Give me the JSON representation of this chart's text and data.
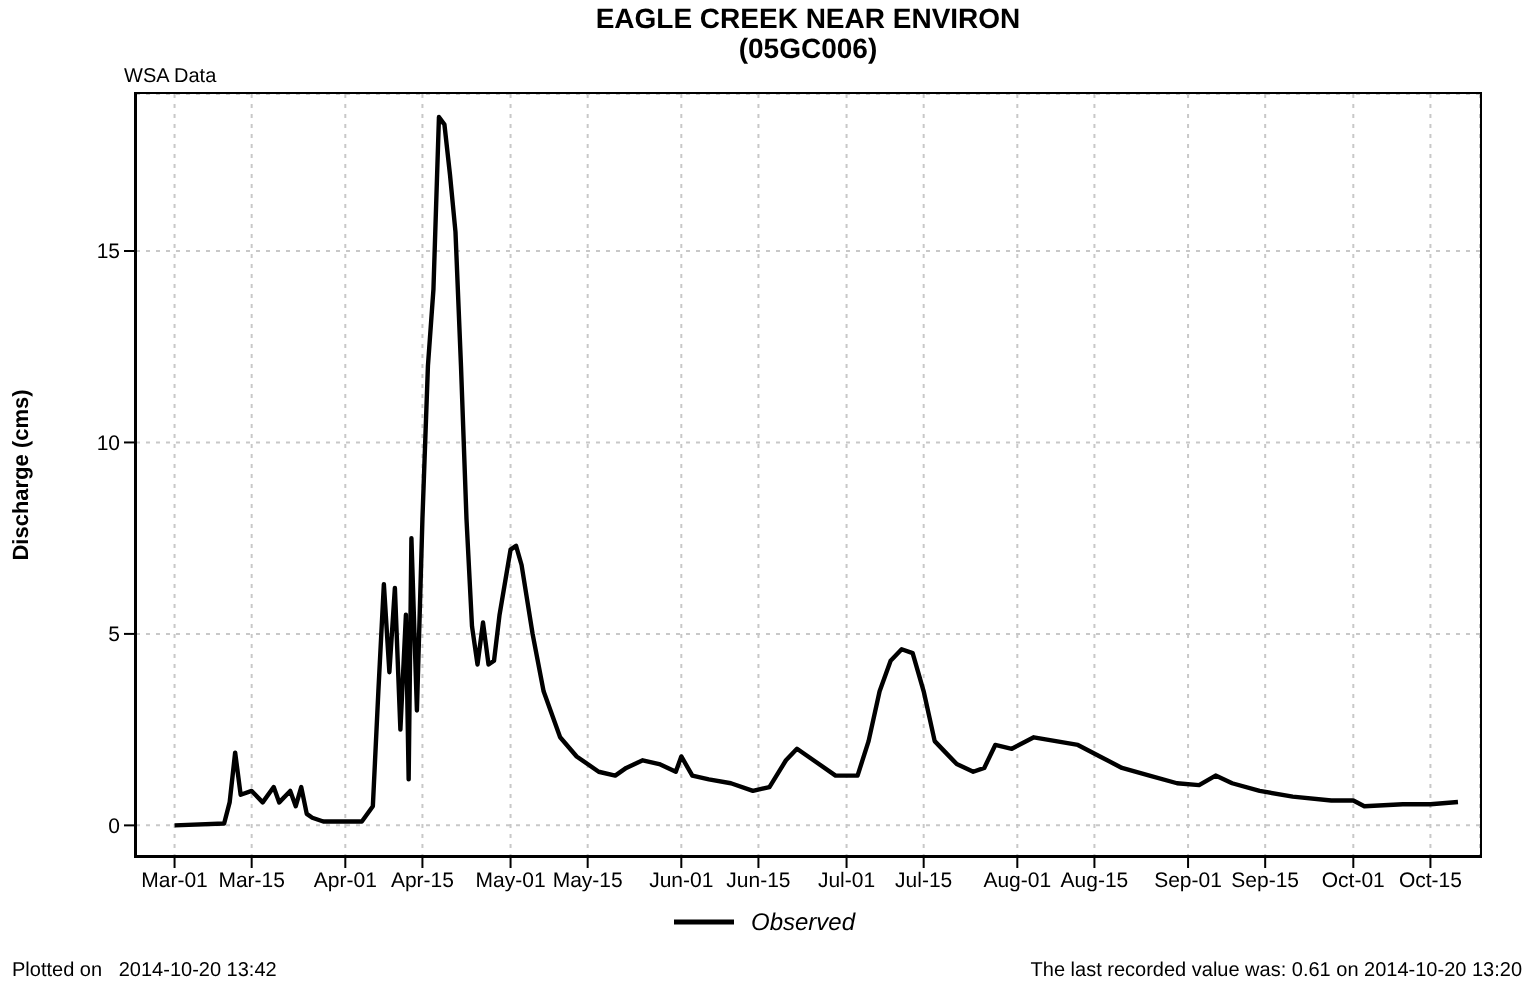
{
  "chart_data": {
    "type": "line",
    "title": "EAGLE CREEK NEAR ENVIRON",
    "subtitle": "(05GC006)",
    "ylabel": "Discharge (cms)",
    "annotations": [
      "WSA Data",
      "Plotted on   2014-10-20 13:42",
      "The last recorded value was: 0.61 on 2014-10-20 13:20"
    ],
    "xlim": [
      "2014-02-22",
      "2014-10-24"
    ],
    "xticks": [
      {
        "value": "2014-03-01",
        "label": "Mar-01"
      },
      {
        "value": "2014-03-15",
        "label": "Mar-15"
      },
      {
        "value": "2014-04-01",
        "label": "Apr-01"
      },
      {
        "value": "2014-04-15",
        "label": "Apr-15"
      },
      {
        "value": "2014-05-01",
        "label": "May-01"
      },
      {
        "value": "2014-05-15",
        "label": "May-15"
      },
      {
        "value": "2014-06-01",
        "label": "Jun-01"
      },
      {
        "value": "2014-06-15",
        "label": "Jun-15"
      },
      {
        "value": "2014-07-01",
        "label": "Jul-01"
      },
      {
        "value": "2014-07-15",
        "label": "Jul-15"
      },
      {
        "value": "2014-08-01",
        "label": "Aug-01"
      },
      {
        "value": "2014-08-15",
        "label": "Aug-15"
      },
      {
        "value": "2014-09-01",
        "label": "Sep-01"
      },
      {
        "value": "2014-09-15",
        "label": "Sep-15"
      },
      {
        "value": "2014-10-01",
        "label": "Oct-01"
      },
      {
        "value": "2014-10-15",
        "label": "Oct-15"
      }
    ],
    "ylim": [
      -0.8,
      19.1
    ],
    "yticks": [
      0,
      5,
      10,
      15
    ],
    "grid": true,
    "legend": "bottom",
    "marker": "none",
    "line_style": "solid",
    "series": [
      {
        "name": "Observed",
        "color": "#000000",
        "x": [
          "2014-03-01",
          "2014-03-10",
          "2014-03-11",
          "2014-03-12",
          "2014-03-13",
          "2014-03-15",
          "2014-03-17",
          "2014-03-19",
          "2014-03-20",
          "2014-03-22",
          "2014-03-23",
          "2014-03-24",
          "2014-03-25",
          "2014-03-26",
          "2014-03-28",
          "2014-04-04",
          "2014-04-06",
          "2014-04-07",
          "2014-04-08",
          "2014-04-09",
          "2014-04-10",
          "2014-04-11",
          "2014-04-12",
          "2014-04-12T12:00",
          "2014-04-13",
          "2014-04-14",
          "2014-04-15",
          "2014-04-16",
          "2014-04-17",
          "2014-04-18",
          "2014-04-19",
          "2014-04-20",
          "2014-04-21",
          "2014-04-22",
          "2014-04-23",
          "2014-04-24",
          "2014-04-25",
          "2014-04-26",
          "2014-04-27",
          "2014-04-28",
          "2014-04-29",
          "2014-05-01",
          "2014-05-02",
          "2014-05-03",
          "2014-05-05",
          "2014-05-07",
          "2014-05-10",
          "2014-05-13",
          "2014-05-17",
          "2014-05-20",
          "2014-05-22",
          "2014-05-25",
          "2014-05-28",
          "2014-05-31",
          "2014-06-01",
          "2014-06-03",
          "2014-06-06",
          "2014-06-10",
          "2014-06-14",
          "2014-06-17",
          "2014-06-20",
          "2014-06-22",
          "2014-06-25",
          "2014-06-29",
          "2014-07-01",
          "2014-07-03",
          "2014-07-05",
          "2014-07-07",
          "2014-07-09",
          "2014-07-11",
          "2014-07-13",
          "2014-07-15",
          "2014-07-17",
          "2014-07-19",
          "2014-07-21",
          "2014-07-24",
          "2014-07-26",
          "2014-07-28",
          "2014-07-31",
          "2014-08-04",
          "2014-08-08",
          "2014-08-12",
          "2014-08-16",
          "2014-08-20",
          "2014-08-25",
          "2014-08-30",
          "2014-09-03",
          "2014-09-06",
          "2014-09-09",
          "2014-09-14",
          "2014-09-20",
          "2014-09-27",
          "2014-10-01",
          "2014-10-03",
          "2014-10-10",
          "2014-10-15",
          "2014-10-20"
        ],
        "values": [
          0.0,
          0.05,
          0.6,
          1.9,
          0.8,
          0.9,
          0.6,
          1.0,
          0.6,
          0.9,
          0.5,
          1.0,
          0.3,
          0.2,
          0.1,
          0.1,
          0.5,
          3.5,
          6.3,
          4.0,
          6.2,
          2.5,
          5.5,
          1.2,
          7.5,
          3.0,
          8.0,
          12,
          14,
          18.5,
          18.3,
          17,
          15.5,
          12,
          8,
          5.2,
          4.2,
          5.3,
          4.2,
          4.3,
          5.5,
          7.2,
          7.3,
          6.8,
          5.0,
          3.5,
          2.3,
          1.8,
          1.4,
          1.3,
          1.5,
          1.7,
          1.6,
          1.4,
          1.8,
          1.3,
          1.2,
          1.1,
          0.9,
          1.0,
          1.7,
          2.0,
          1.7,
          1.3,
          1.3,
          1.3,
          2.2,
          3.5,
          4.3,
          4.6,
          4.5,
          3.5,
          2.2,
          1.9,
          1.6,
          1.4,
          1.5,
          2.1,
          2.0,
          2.3,
          2.2,
          2.1,
          1.8,
          1.5,
          1.3,
          1.1,
          1.05,
          1.3,
          1.1,
          0.9,
          0.75,
          0.65,
          0.65,
          0.5,
          0.55,
          0.55,
          0.61
        ]
      }
    ]
  }
}
